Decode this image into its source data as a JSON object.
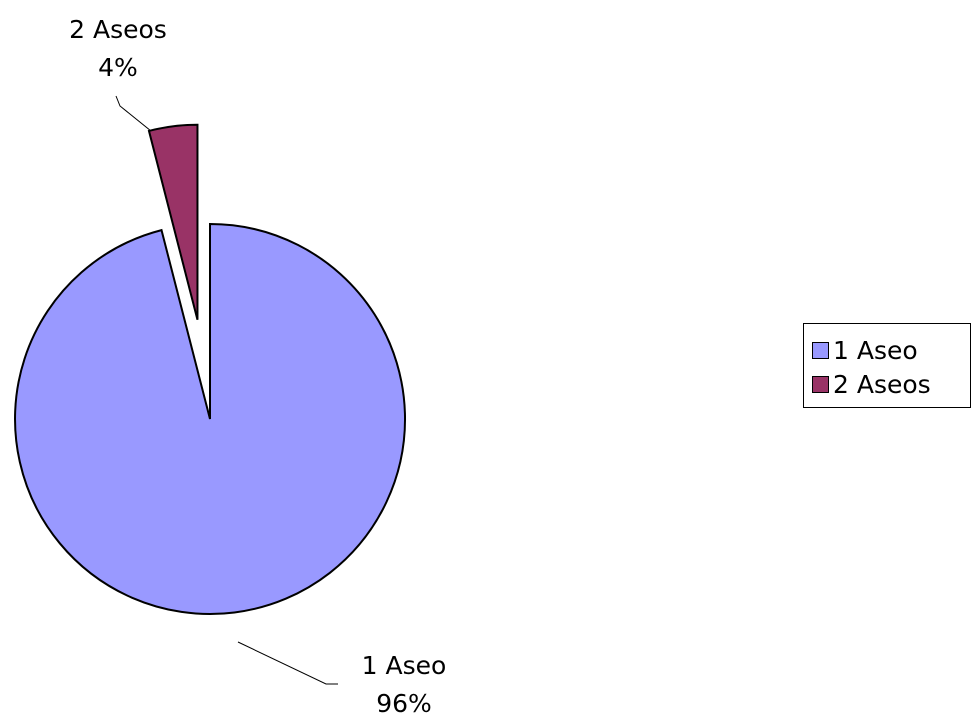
{
  "chart_data": {
    "type": "pie",
    "title": "",
    "slices": [
      {
        "name": "1 Aseo",
        "value": 96,
        "label": "96%",
        "color": "#9999FF",
        "exploded": false
      },
      {
        "name": "2 Aseos",
        "value": 4,
        "label": "4%",
        "color": "#993366",
        "exploded": true
      }
    ],
    "legend": {
      "placement": "right",
      "entries": [
        "1 Aseo",
        "2 Aseos"
      ]
    }
  }
}
